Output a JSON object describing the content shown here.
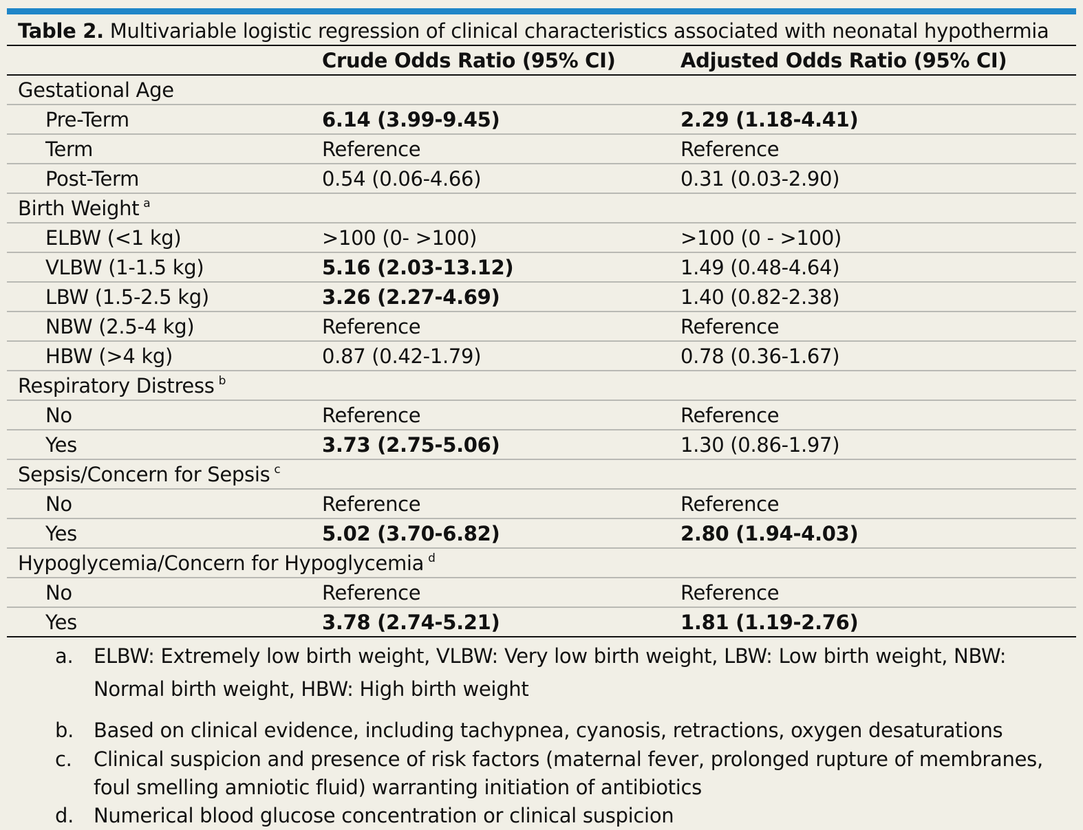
{
  "caption": {
    "label": "Table 2.",
    "text": "Multivariable logistic regression of clinical characteristics associated with neonatal hypothermia"
  },
  "table": {
    "headers": [
      "",
      "Crude Odds Ratio (95% CI)",
      "Adjusted Odds Ratio (95% CI)"
    ],
    "rows": [
      {
        "label": "Gestational Age",
        "sup": "",
        "group": true,
        "crude": "",
        "adjusted": "",
        "crude_bold": false,
        "adjusted_bold": false
      },
      {
        "label": "Pre-Term",
        "sup": "",
        "group": false,
        "crude": "6.14 (3.99-9.45)",
        "adjusted": "2.29 (1.18-4.41)",
        "crude_bold": true,
        "adjusted_bold": true
      },
      {
        "label": "Term",
        "sup": "",
        "group": false,
        "crude": "Reference",
        "adjusted": "Reference",
        "crude_bold": false,
        "adjusted_bold": false
      },
      {
        "label": "Post-Term",
        "sup": "",
        "group": false,
        "crude": "0.54 (0.06-4.66)",
        "adjusted": "0.31 (0.03-2.90)",
        "crude_bold": false,
        "adjusted_bold": false
      },
      {
        "label": "Birth Weight",
        "sup": "a",
        "group": true,
        "crude": "",
        "adjusted": "",
        "crude_bold": false,
        "adjusted_bold": false
      },
      {
        "label": "ELBW (<1 kg)",
        "sup": "",
        "group": false,
        "crude": ">100 (0- >100)",
        "adjusted": ">100 (0 - >100)",
        "crude_bold": false,
        "adjusted_bold": false
      },
      {
        "label": "VLBW (1-1.5 kg)",
        "sup": "",
        "group": false,
        "crude": "5.16 (2.03-13.12)",
        "adjusted": "1.49 (0.48-4.64)",
        "crude_bold": true,
        "adjusted_bold": false
      },
      {
        "label": "LBW (1.5-2.5 kg)",
        "sup": "",
        "group": false,
        "crude": "3.26 (2.27-4.69)",
        "adjusted": "1.40 (0.82-2.38)",
        "crude_bold": true,
        "adjusted_bold": false
      },
      {
        "label": "NBW (2.5-4 kg)",
        "sup": "",
        "group": false,
        "crude": "Reference",
        "adjusted": "Reference",
        "crude_bold": false,
        "adjusted_bold": false
      },
      {
        "label": "HBW (>4 kg)",
        "sup": "",
        "group": false,
        "crude": "0.87 (0.42-1.79)",
        "adjusted": "0.78 (0.36-1.67)",
        "crude_bold": false,
        "adjusted_bold": false
      },
      {
        "label": "Respiratory Distress",
        "sup": "b",
        "group": true,
        "crude": "",
        "adjusted": "",
        "crude_bold": false,
        "adjusted_bold": false
      },
      {
        "label": "No",
        "sup": "",
        "group": false,
        "crude": "Reference",
        "adjusted": "Reference",
        "crude_bold": false,
        "adjusted_bold": false
      },
      {
        "label": "Yes",
        "sup": "",
        "group": false,
        "crude": "3.73 (2.75-5.06)",
        "adjusted": "1.30 (0.86-1.97)",
        "crude_bold": true,
        "adjusted_bold": false
      },
      {
        "label": "Sepsis/Concern for Sepsis",
        "sup": "c",
        "group": true,
        "crude": "",
        "adjusted": "",
        "crude_bold": false,
        "adjusted_bold": false
      },
      {
        "label": "No",
        "sup": "",
        "group": false,
        "crude": "Reference",
        "adjusted": "Reference",
        "crude_bold": false,
        "adjusted_bold": false
      },
      {
        "label": "Yes",
        "sup": "",
        "group": false,
        "crude": "5.02 (3.70-6.82)",
        "adjusted": "2.80 (1.94-4.03)",
        "crude_bold": true,
        "adjusted_bold": true
      },
      {
        "label": "Hypoglycemia/Concern for Hypoglycemia",
        "sup": "d",
        "group": true,
        "crude": "",
        "adjusted": "",
        "crude_bold": false,
        "adjusted_bold": false
      },
      {
        "label": "No",
        "sup": "",
        "group": false,
        "crude": "Reference",
        "adjusted": "Reference",
        "crude_bold": false,
        "adjusted_bold": false
      },
      {
        "label": "Yes",
        "sup": "",
        "group": false,
        "crude": "3.78 (2.74-5.21)",
        "adjusted": "1.81 (1.19-2.76)",
        "crude_bold": true,
        "adjusted_bold": true
      }
    ]
  },
  "footnotes": [
    {
      "mark": "a.",
      "text": "ELBW: Extremely low birth weight, VLBW: Very low birth weight, LBW: Low birth weight, NBW: Normal birth weight, HBW: High birth weight"
    },
    {
      "mark": "b.",
      "text": "Based on clinical evidence, including tachypnea, cyanosis, retractions, oxygen desaturations"
    },
    {
      "mark": "c.",
      "text": "Clinical suspicion and presence of risk factors (maternal fever, prolonged rupture of membranes, foul smelling amniotic fluid) warranting initiation of antibiotics"
    },
    {
      "mark": "d.",
      "text": "Numerical blood glucose concentration or clinical suspicion"
    }
  ],
  "colors": {
    "background": "#f1efe6",
    "accent_rule": "#1f86c8",
    "row_rule": "#b9b9b4",
    "text": "#111111"
  }
}
